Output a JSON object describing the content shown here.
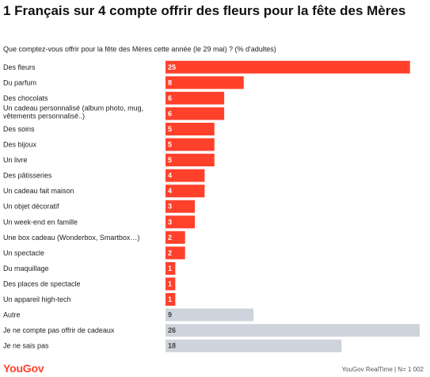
{
  "title": "1 Français sur 4 compte offrir des fleurs pour la fête des Mères",
  "subtitle": "Que comptez-vous offrir pour la fête des Mères cette année (le 29 mai) ? (% d'adultes)",
  "footer": {
    "brand": "YouGov",
    "source": "YouGov RealTime | N= 1 002"
  },
  "colors": {
    "highlight": "#ff412c",
    "neutral": "#cfd3dc"
  },
  "chart_data": {
    "type": "bar",
    "orientation": "horizontal",
    "title": "1 Français sur 4 compte offrir des fleurs pour la fête des Mères",
    "subtitle": "Que comptez-vous offrir pour la fête des Mères cette année (le 29 mai) ? (% d'adultes)",
    "xlim": [
      0,
      26
    ],
    "grid": false,
    "categories": [
      "Des fleurs",
      "Du parfum",
      "Des chocolats",
      "Un cadeau personnalisé (album photo, mug, vêtements personnalisé..)",
      "Des soins",
      "Des bijoux",
      "Un livre",
      "Des pâtisseries",
      "Un cadeau fait maison",
      "Un objet décoratif",
      "Un week-end en famille",
      "Une box cadeau (Wonderbox, Smartbox…)",
      "Un spectacle",
      "Du maquillage",
      "Des places de spectacle",
      "Un appareil high-tech",
      "Autre",
      "Je ne compte pas offrir de cadeaux",
      "Je ne sais pas"
    ],
    "values": [
      25,
      8,
      6,
      6,
      5,
      5,
      5,
      4,
      4,
      3,
      3,
      2,
      2,
      1,
      1,
      1,
      9,
      26,
      18
    ],
    "bar_colors": [
      "#ff412c",
      "#ff412c",
      "#ff412c",
      "#ff412c",
      "#ff412c",
      "#ff412c",
      "#ff412c",
      "#ff412c",
      "#ff412c",
      "#ff412c",
      "#ff412c",
      "#ff412c",
      "#ff412c",
      "#ff412c",
      "#ff412c",
      "#ff412c",
      "#cfd3dc",
      "#cfd3dc",
      "#cfd3dc"
    ],
    "value_label_colors": [
      "#ffffff",
      "#ffffff",
      "#ffffff",
      "#ffffff",
      "#ffffff",
      "#ffffff",
      "#ffffff",
      "#ffffff",
      "#ffffff",
      "#ffffff",
      "#ffffff",
      "#ffffff",
      "#ffffff",
      "#ffffff",
      "#ffffff",
      "#ffffff",
      "#444444",
      "#444444",
      "#444444"
    ]
  }
}
